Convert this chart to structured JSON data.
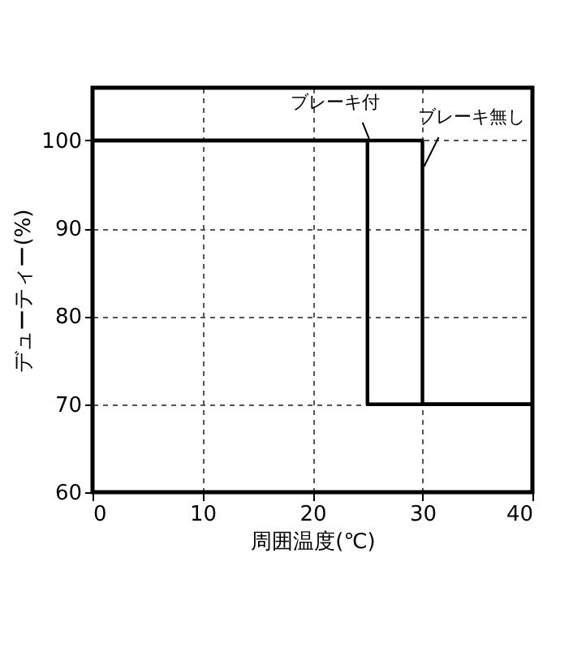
{
  "chart_data": {
    "type": "line",
    "xlabel": "周囲温度(℃)",
    "ylabel": "デューティー(%)",
    "series": [
      {
        "name": "ブレーキ付",
        "color": "#000000",
        "x": [
          0,
          25,
          25,
          40
        ],
        "values": [
          100,
          100,
          70,
          70
        ]
      },
      {
        "name": "ブレーキ無し",
        "color": "#000000",
        "x": [
          0,
          30,
          30,
          40
        ],
        "values": [
          100,
          100,
          70,
          70
        ]
      }
    ],
    "xlim": [
      0,
      40
    ],
    "xticks": [
      0,
      10,
      20,
      30,
      40
    ],
    "ylim": [
      60,
      106
    ],
    "yticks": [
      60,
      70,
      80,
      90,
      100
    ],
    "grid": true,
    "marker": "none",
    "line_style": "solid"
  }
}
